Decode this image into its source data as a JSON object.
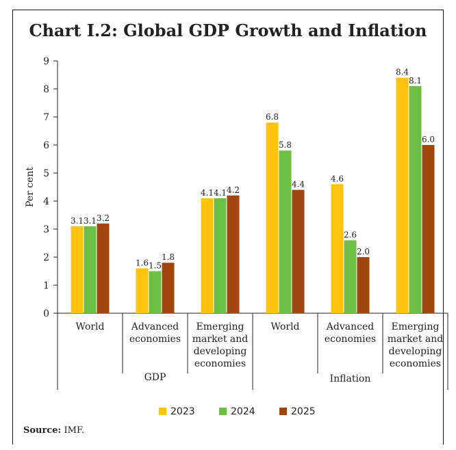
{
  "chart_data": {
    "type": "bar",
    "title": "Chart I.2: Global GDP Growth and Inflation",
    "ylabel": "Per cent",
    "ylim": [
      0,
      9
    ],
    "yticks": [
      0,
      1,
      2,
      3,
      4,
      5,
      6,
      7,
      8,
      9
    ],
    "categories": [
      [
        "World"
      ],
      [
        "Advanced",
        "economies"
      ],
      [
        "Emerging",
        "market and",
        "developing",
        "economies"
      ],
      [
        "World"
      ],
      [
        "Advanced",
        "economies"
      ],
      [
        "Emerging",
        "market and",
        "developing",
        "economies"
      ]
    ],
    "groups": [
      "GDP",
      "Inflation"
    ],
    "series": [
      {
        "name": "2023",
        "color": "#FFC20E",
        "values": [
          3.1,
          1.6,
          4.1,
          6.8,
          4.6,
          8.4
        ]
      },
      {
        "name": "2024",
        "color": "#6DBE45",
        "values": [
          3.1,
          1.5,
          4.1,
          5.8,
          2.6,
          8.1
        ]
      },
      {
        "name": "2025",
        "color": "#A0460F",
        "values": [
          3.2,
          1.8,
          4.2,
          4.4,
          2.0,
          6.0
        ]
      }
    ],
    "value_labels": [
      [
        "3.1",
        "1.6",
        "4.1",
        "6.8",
        "4.6",
        "8.4"
      ],
      [
        "3.1",
        "1.5",
        "4.1",
        "5.8",
        "2.6",
        "8.1"
      ],
      [
        "3.2",
        "1.8",
        "4.2",
        "4.4",
        "2.0",
        "6.0"
      ]
    ],
    "legend_position": "bottom",
    "grid": false
  },
  "source": {
    "label": "Source:",
    "text": "IMF."
  }
}
